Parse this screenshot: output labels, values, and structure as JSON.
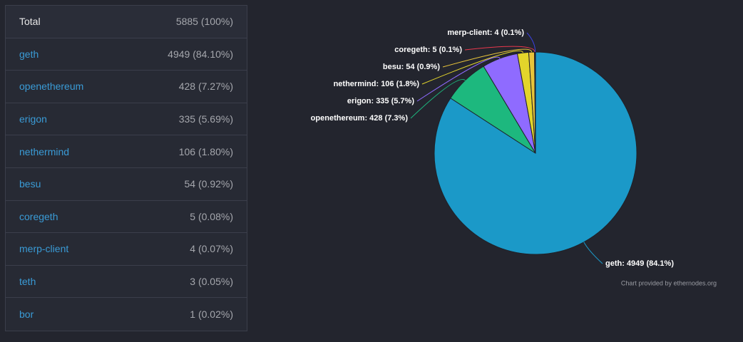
{
  "table": {
    "total": {
      "name": "Total",
      "value": "5885 (100%)"
    },
    "rows": [
      {
        "name": "geth",
        "value": "4949 (84.10%)"
      },
      {
        "name": "openethereum",
        "value": "428 (7.27%)"
      },
      {
        "name": "erigon",
        "value": "335 (5.69%)"
      },
      {
        "name": "nethermind",
        "value": "106 (1.80%)"
      },
      {
        "name": "besu",
        "value": "54 (0.92%)"
      },
      {
        "name": "coregeth",
        "value": "5 (0.08%)"
      },
      {
        "name": "merp-client",
        "value": "4 (0.07%)"
      },
      {
        "name": "teth",
        "value": "3 (0.05%)"
      },
      {
        "name": "bor",
        "value": "1 (0.02%)"
      }
    ]
  },
  "chart_data": {
    "type": "pie",
    "categories": [
      "geth",
      "openethereum",
      "erigon",
      "nethermind",
      "besu",
      "coregeth",
      "merp-client"
    ],
    "values": [
      4949,
      428,
      335,
      106,
      54,
      5,
      4
    ],
    "value_labels": [
      "geth: 4949 (84.1%)",
      "openethereum: 428 (7.3%)",
      "erigon: 335 (5.7%)",
      "nethermind: 106 (1.8%)",
      "besu: 54 (0.9%)",
      "coregeth: 5 (0.1%)",
      "merp-client: 4 (0.1%)"
    ],
    "colors": [
      "#1b99c8",
      "#1db87e",
      "#8f6bff",
      "#e3d52b",
      "#e8c43a",
      "#e8384d",
      "#3b40e0"
    ],
    "credit": "Chart provided by ethernodes.org"
  }
}
